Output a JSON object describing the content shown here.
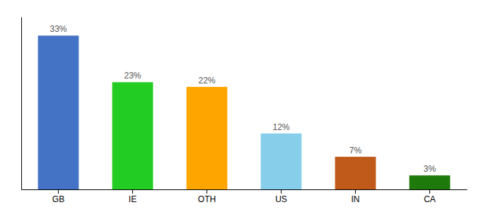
{
  "chart_data": {
    "type": "bar",
    "categories": [
      "GB",
      "IE",
      "OTH",
      "US",
      "IN",
      "CA"
    ],
    "values": [
      33,
      23,
      22,
      12,
      7,
      3
    ],
    "value_labels": [
      "33%",
      "23%",
      "22%",
      "12%",
      "7%",
      "3%"
    ],
    "colors": [
      "#4472C4",
      "#22CC22",
      "#FFA500",
      "#87CEEB",
      "#C05A1A",
      "#1E7A0A"
    ],
    "ylim": [
      0,
      37
    ],
    "data_labels": true,
    "tick_labels": "x",
    "grid": false
  }
}
